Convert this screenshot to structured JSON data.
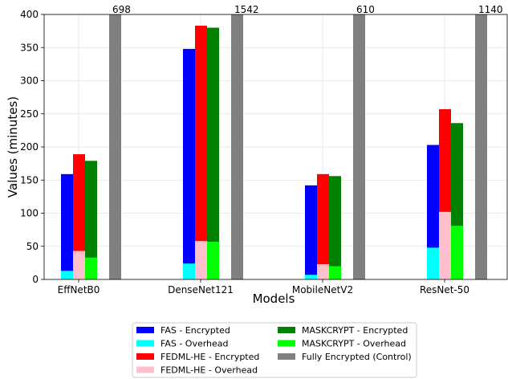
{
  "chart_data": {
    "type": "bar",
    "xlabel": "Models",
    "ylabel": "Values (minutes)",
    "ylim": [
      0,
      400
    ],
    "yticks": [
      0,
      50,
      100,
      150,
      200,
      250,
      300,
      350,
      400
    ],
    "grid": true,
    "legend_position": "bottom-center",
    "categories": [
      "EffNetB0",
      "DenseNet121",
      "MobileNetV2",
      "ResNet-50"
    ],
    "series": [
      {
        "name": "FAS - Encrypted",
        "color": "#0000ff",
        "values": [
          159,
          348,
          142,
          203
        ]
      },
      {
        "name": "FAS - Overhead",
        "color": "#00ffff",
        "values": [
          13,
          24,
          7,
          48
        ]
      },
      {
        "name": "FEDML-HE - Encrypted",
        "color": "#ff0000",
        "values": [
          189,
          383,
          159,
          257
        ]
      },
      {
        "name": "FEDML-HE - Overhead",
        "color": "#ffc0cb",
        "values": [
          43,
          58,
          23,
          102
        ]
      },
      {
        "name": "MASKCRYPT - Encrypted",
        "color": "#008000",
        "values": [
          179,
          380,
          156,
          236
        ]
      },
      {
        "name": "MASKCRYPT - Overhead",
        "color": "#00ff00",
        "values": [
          33,
          57,
          20,
          81
        ]
      },
      {
        "name": "Fully Encrypted (Control)",
        "color": "#808080",
        "values": [
          698,
          1542,
          610,
          1140
        ]
      }
    ],
    "control_labels": [
      "698",
      "1542",
      "610",
      "1140"
    ]
  }
}
